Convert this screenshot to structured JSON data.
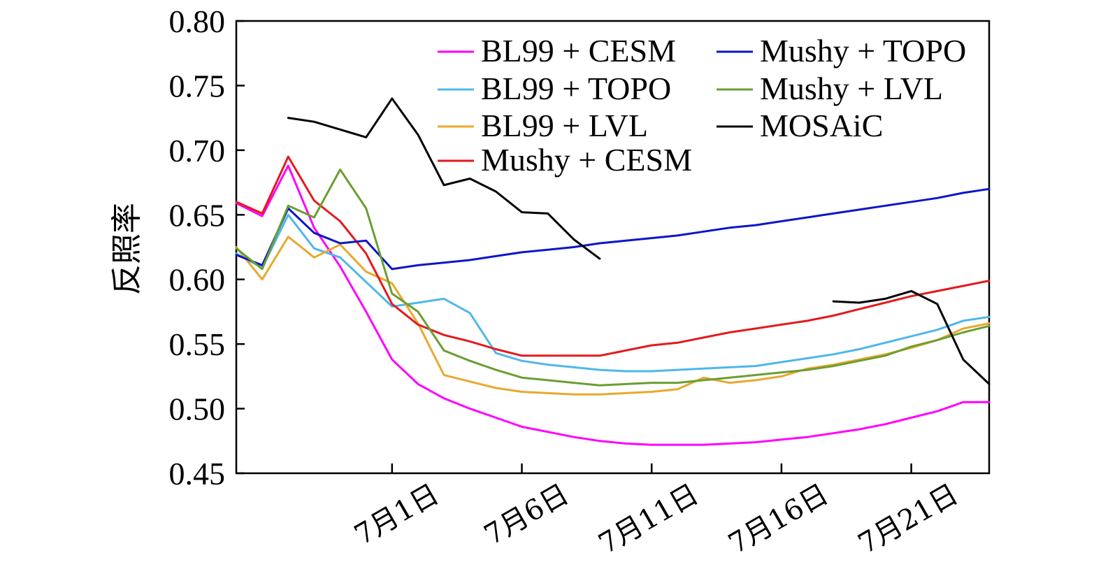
{
  "chart_data": {
    "type": "line",
    "ylabel": "反照率",
    "xlabel": "",
    "ylim": [
      0.45,
      0.8
    ],
    "xlim": [
      -5,
      24
    ],
    "y_ticks": [
      "0.45",
      "0.50",
      "0.55",
      "0.60",
      "0.65",
      "0.70",
      "0.75",
      "0.80"
    ],
    "x_ticks": [
      {
        "day": 1,
        "label": "7月1日"
      },
      {
        "day": 6,
        "label": "7月6日"
      },
      {
        "day": 11,
        "label": "7月11日"
      },
      {
        "day": 16,
        "label": "7月16日"
      },
      {
        "day": 21,
        "label": "7月21日"
      }
    ],
    "x_unit": "day of July (June 30 = 0)",
    "legend_position": "top-right",
    "series": [
      {
        "name": "BL99 + CESM",
        "color": "#ff00ff",
        "x": [
          -5,
          -4,
          -3,
          -2,
          -1,
          0,
          1,
          2,
          3,
          4,
          5,
          6,
          7,
          8,
          9,
          10,
          11,
          12,
          13,
          14,
          15,
          16,
          17,
          18,
          19,
          20,
          21,
          22,
          23,
          24
        ],
        "y": [
          0.659,
          0.649,
          0.688,
          0.64,
          0.61,
          0.575,
          0.538,
          0.519,
          0.508,
          0.5,
          0.493,
          0.486,
          0.482,
          0.478,
          0.475,
          0.473,
          0.472,
          0.472,
          0.472,
          0.473,
          0.474,
          0.476,
          0.478,
          0.481,
          0.484,
          0.488,
          0.493,
          0.498,
          0.505,
          0.505
        ]
      },
      {
        "name": "BL99 + TOPO",
        "color": "#4fb7ea",
        "x": [
          -5,
          -4,
          -3,
          -2,
          -1,
          0,
          1,
          2,
          3,
          4,
          5,
          6,
          7,
          8,
          9,
          10,
          11,
          12,
          13,
          14,
          15,
          16,
          17,
          18,
          19,
          20,
          21,
          22,
          23,
          24
        ],
        "y": [
          0.62,
          0.609,
          0.65,
          0.624,
          0.617,
          0.598,
          0.579,
          0.582,
          0.585,
          0.574,
          0.543,
          0.537,
          0.534,
          0.532,
          0.53,
          0.529,
          0.529,
          0.53,
          0.531,
          0.532,
          0.533,
          0.536,
          0.539,
          0.542,
          0.546,
          0.551,
          0.556,
          0.561,
          0.568,
          0.571
        ]
      },
      {
        "name": "BL99 + LVL",
        "color": "#e8a92e",
        "x": [
          -5,
          -4,
          -3,
          -2,
          -1,
          0,
          1,
          2,
          3,
          4,
          5,
          6,
          7,
          8,
          9,
          10,
          11,
          12,
          13,
          14,
          15,
          16,
          17,
          18,
          19,
          20,
          21,
          22,
          23,
          24
        ],
        "y": [
          0.625,
          0.6,
          0.633,
          0.617,
          0.627,
          0.606,
          0.597,
          0.566,
          0.526,
          0.521,
          0.516,
          0.513,
          0.512,
          0.511,
          0.511,
          0.512,
          0.513,
          0.515,
          0.524,
          0.52,
          0.522,
          0.525,
          0.531,
          0.534,
          0.538,
          0.542,
          0.547,
          0.553,
          0.562,
          0.566
        ]
      },
      {
        "name": "Mushy + CESM",
        "color": "#e31a1c",
        "x": [
          -5,
          -4,
          -3,
          -2,
          -1,
          0,
          1,
          2,
          3,
          4,
          5,
          6,
          7,
          8,
          9,
          10,
          11,
          12,
          13,
          14,
          15,
          16,
          17,
          18,
          19,
          20,
          21,
          22,
          23,
          24
        ],
        "y": [
          0.66,
          0.651,
          0.695,
          0.661,
          0.645,
          0.62,
          0.581,
          0.565,
          0.557,
          0.552,
          0.546,
          0.541,
          0.541,
          0.541,
          0.541,
          0.545,
          0.549,
          0.551,
          0.555,
          0.559,
          0.562,
          0.565,
          0.568,
          0.572,
          0.577,
          0.582,
          0.587,
          0.591,
          0.595,
          0.599
        ]
      },
      {
        "name": "Mushy + TOPO",
        "color": "#0b16c8",
        "x": [
          -5,
          -4,
          -3,
          -2,
          -1,
          0,
          1,
          2,
          3,
          4,
          5,
          6,
          7,
          8,
          9,
          10,
          11,
          12,
          13,
          14,
          15,
          16,
          17,
          18,
          19,
          20,
          21,
          22,
          23,
          24
        ],
        "y": [
          0.619,
          0.611,
          0.655,
          0.636,
          0.628,
          0.63,
          0.608,
          0.611,
          0.613,
          0.615,
          0.618,
          0.621,
          0.623,
          0.625,
          0.628,
          0.63,
          0.632,
          0.634,
          0.637,
          0.64,
          0.642,
          0.645,
          0.648,
          0.651,
          0.654,
          0.657,
          0.66,
          0.663,
          0.667,
          0.67
        ]
      },
      {
        "name": "Mushy + LVL",
        "color": "#6b9e31",
        "x": [
          -5,
          -4,
          -3,
          -2,
          -1,
          0,
          1,
          2,
          3,
          4,
          5,
          6,
          7,
          8,
          9,
          10,
          11,
          12,
          13,
          14,
          15,
          16,
          17,
          18,
          19,
          20,
          21,
          22,
          23,
          24
        ],
        "y": [
          0.624,
          0.608,
          0.657,
          0.648,
          0.685,
          0.655,
          0.589,
          0.575,
          0.545,
          0.537,
          0.53,
          0.524,
          0.522,
          0.52,
          0.518,
          0.519,
          0.52,
          0.52,
          0.522,
          0.524,
          0.526,
          0.528,
          0.53,
          0.533,
          0.537,
          0.541,
          0.548,
          0.553,
          0.559,
          0.564
        ]
      },
      {
        "name": "MOSAiC",
        "color": "#000000",
        "segments": [
          {
            "x": [
              -3,
              -2,
              -1,
              0,
              1,
              2,
              3,
              4,
              5,
              6,
              7,
              8,
              9
            ],
            "y": [
              0.725,
              0.722,
              0.716,
              0.71,
              0.74,
              0.712,
              0.673,
              0.678,
              0.668,
              0.652,
              0.651,
              0.631,
              0.616
            ]
          },
          {
            "x": [
              18,
              19,
              20,
              21,
              22,
              23,
              24
            ],
            "y": [
              0.583,
              0.582,
              0.585,
              0.591,
              0.581,
              0.538,
              0.519
            ]
          }
        ]
      }
    ]
  }
}
